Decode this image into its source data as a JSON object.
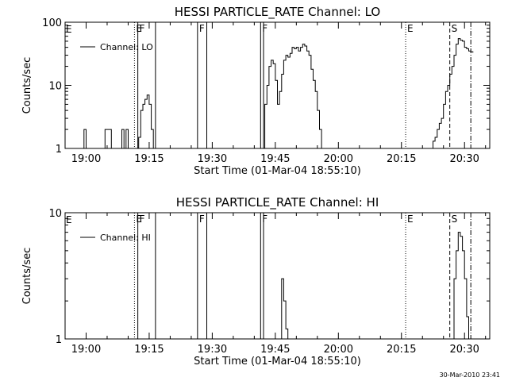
{
  "footer_timestamp": "30-Mar-2010 23:41",
  "chart_data": [
    {
      "type": "line",
      "title": "HESSI PARTICLE_RATE Channel: LO",
      "xlabel": "Start Time (01-Mar-04 18:55:10)",
      "ylabel": "Counts/sec",
      "legend": {
        "label": "Channel: LO",
        "placement": "top-left"
      },
      "yscale": "log",
      "xlim": [
        "18:55",
        "20:36"
      ],
      "ylim": [
        1,
        100
      ],
      "xticks": [
        "19:00",
        "19:15",
        "19:30",
        "19:45",
        "20:00",
        "20:15",
        "20:30"
      ],
      "yticks": [
        "1",
        "10",
        "100"
      ],
      "series": [
        {
          "x": [
            "18:55",
            "18:59",
            "18:59.5",
            "19:00",
            "19:04",
            "19:04.5",
            "19:05.5",
            "19:06",
            "19:08",
            "19:08.5",
            "19:09",
            "19:09.5",
            "19:10",
            "19:10.5",
            "19:12",
            "19:12.5",
            "19:13",
            "19:13.5",
            "19:14",
            "19:14.5",
            "19:15",
            "19:15.5",
            "19:16",
            "19:42",
            "19:42.5",
            "19:43",
            "19:43.5",
            "19:44",
            "19:44.5",
            "19:45",
            "19:45.5",
            "19:46",
            "19:46.5",
            "19:47",
            "19:47.5",
            "19:48",
            "19:48.5",
            "19:49",
            "19:49.5",
            "19:50",
            "19:50.5",
            "19:51",
            "19:51.5",
            "19:52",
            "19:52.5",
            "19:53",
            "19:53.5",
            "19:54",
            "19:54.5",
            "19:55",
            "19:55.5",
            "19:56",
            "19:56.5",
            "20:20",
            "20:22",
            "20:22.5",
            "20:23",
            "20:23.5",
            "20:24",
            "20:24.5",
            "20:25",
            "20:25.5",
            "20:26",
            "20:26.5",
            "20:27",
            "20:27.5",
            "20:28",
            "20:28.5",
            "20:29",
            "20:29.5",
            "20:30",
            "20:30.5",
            "20:31",
            "20:31.5",
            "20:32"
          ],
          "values": [
            1,
            1,
            2,
            1,
            1,
            2,
            2,
            1,
            1,
            2,
            1,
            2,
            1,
            1,
            1,
            1.5,
            4,
            5,
            6,
            7,
            5,
            2,
            1,
            1,
            5,
            10,
            20,
            25,
            22,
            12,
            5,
            8,
            15,
            25,
            30,
            28,
            32,
            40,
            38,
            40,
            35,
            40,
            45,
            42,
            35,
            30,
            18,
            12,
            8,
            4,
            2,
            1,
            1,
            1,
            1,
            1.3,
            1.5,
            2,
            2.5,
            3,
            5,
            8,
            10,
            15,
            20,
            30,
            45,
            55,
            52,
            50,
            40,
            38,
            35,
            34,
            33
          ]
        }
      ],
      "vlines": [
        {
          "x": "19:11.5",
          "style": "dotted",
          "label": "E"
        },
        {
          "x": "19:12.3",
          "style": "solid",
          "label": "F"
        },
        {
          "x": "19:16.5",
          "style": "solid",
          "label": ""
        },
        {
          "x": "19:26.5",
          "style": "solid",
          "label": "F"
        },
        {
          "x": "19:28.7",
          "style": "solid",
          "label": ""
        },
        {
          "x": "19:41.5",
          "style": "solid",
          "label": "F"
        },
        {
          "x": "19:42.2",
          "style": "solid",
          "label": ""
        },
        {
          "x": "20:16",
          "style": "dotted",
          "label": "E"
        },
        {
          "x": "20:26.5",
          "style": "dashed",
          "label": "S"
        },
        {
          "x": "20:31.5",
          "style": "dashdot",
          "label": ""
        }
      ],
      "edge_labels": [
        {
          "x": "18:55",
          "label": "E"
        }
      ]
    },
    {
      "type": "line",
      "title": "HESSI PARTICLE_RATE Channel: HI",
      "xlabel": "Start Time (01-Mar-04 18:55:10)",
      "ylabel": "Counts/sec",
      "legend": {
        "label": "Channel: HI",
        "placement": "top-left"
      },
      "yscale": "log",
      "xlim": [
        "18:55",
        "20:36"
      ],
      "ylim": [
        1,
        10
      ],
      "xticks": [
        "19:00",
        "19:15",
        "19:30",
        "19:45",
        "20:00",
        "20:15",
        "20:30"
      ],
      "yticks": [
        "1",
        "10"
      ],
      "series": [
        {
          "x": [
            "18:55",
            "19:46",
            "19:46.5",
            "19:47",
            "19:47.5",
            "19:48",
            "20:27",
            "20:27.5",
            "20:28",
            "20:28.5",
            "20:29",
            "20:29.5",
            "20:30",
            "20:30.5",
            "20:31"
          ],
          "values": [
            1,
            1,
            3,
            2,
            1.2,
            1,
            1,
            3,
            5,
            7,
            6.5,
            5,
            3,
            1.5,
            1
          ]
        }
      ],
      "vlines": [
        {
          "x": "19:11.5",
          "style": "dotted",
          "label": "E"
        },
        {
          "x": "19:12.3",
          "style": "solid",
          "label": "F"
        },
        {
          "x": "19:16.5",
          "style": "solid",
          "label": ""
        },
        {
          "x": "19:26.5",
          "style": "solid",
          "label": "F"
        },
        {
          "x": "19:28.7",
          "style": "solid",
          "label": ""
        },
        {
          "x": "19:41.5",
          "style": "solid",
          "label": "F"
        },
        {
          "x": "19:42.2",
          "style": "solid",
          "label": ""
        },
        {
          "x": "20:16",
          "style": "dotted",
          "label": "E"
        },
        {
          "x": "20:26.5",
          "style": "dashed",
          "label": "S"
        },
        {
          "x": "20:31.5",
          "style": "dashdot",
          "label": ""
        }
      ],
      "edge_labels": [
        {
          "x": "18:55",
          "label": "E"
        }
      ]
    }
  ]
}
